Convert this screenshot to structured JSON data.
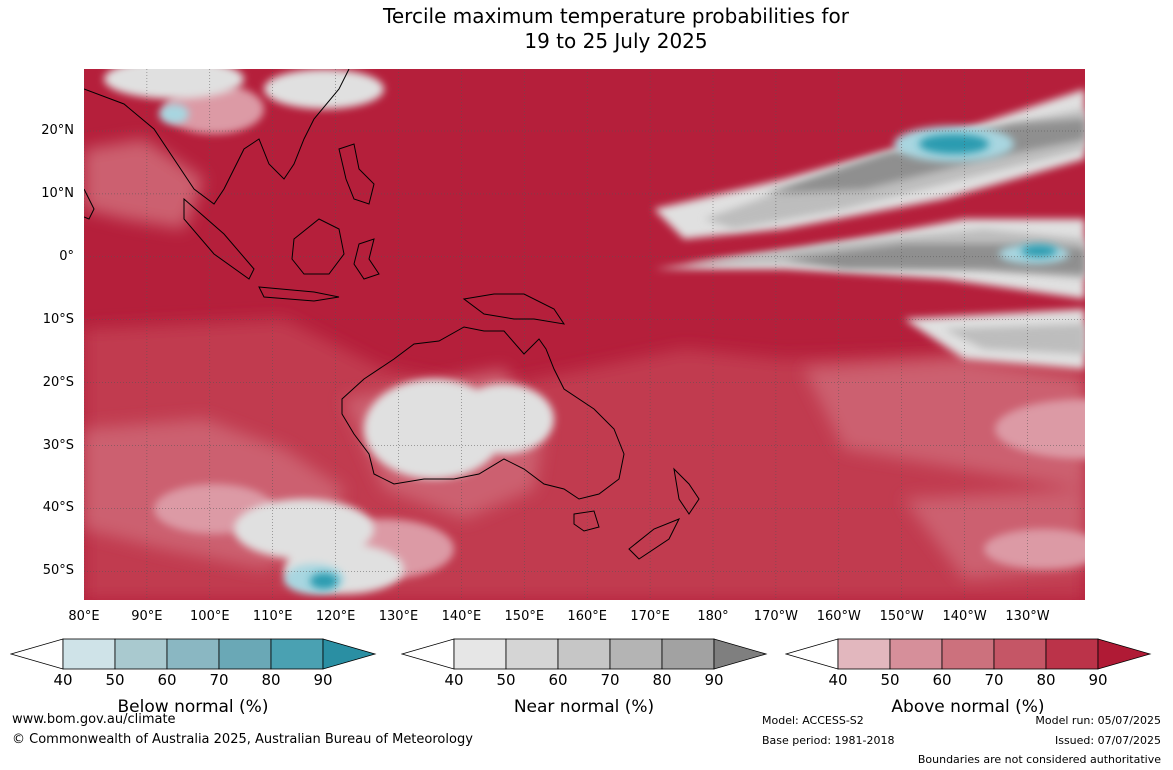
{
  "title_line1": "Tercile maximum temperature probabilities for",
  "title_line2": "19 to 25 July 2025",
  "lat_labels": [
    "20°N",
    "10°N",
    "0°",
    "10°S",
    "20°S",
    "30°S",
    "40°S",
    "50°S"
  ],
  "lon_labels": [
    "80°E",
    "90°E",
    "100°E",
    "110°E",
    "120°E",
    "130°E",
    "140°E",
    "150°E",
    "160°E",
    "170°E",
    "180°",
    "170°W",
    "160°W",
    "150°W",
    "140°W",
    "130°W"
  ],
  "colorbars": [
    {
      "title": "Below normal (%)",
      "ticks": [
        "40",
        "50",
        "60",
        "70",
        "80",
        "90"
      ],
      "colors": [
        "#cfe3e8",
        "#a9c9cf",
        "#8ab7c2",
        "#6aa8b6",
        "#4aa1b2"
      ],
      "extend_color": "#2a8fa3"
    },
    {
      "title": "Near normal (%)",
      "ticks": [
        "40",
        "50",
        "60",
        "70",
        "80",
        "90"
      ],
      "colors": [
        "#e6e6e6",
        "#d5d5d5",
        "#c6c6c6",
        "#b4b4b4",
        "#a2a2a2"
      ],
      "extend_color": "#7f7f7f"
    },
    {
      "title": "Above normal (%)",
      "ticks": [
        "40",
        "50",
        "60",
        "70",
        "80",
        "90"
      ],
      "colors": [
        "#e2b7be",
        "#d68f9a",
        "#cc717d",
        "#c55666",
        "#bb3349"
      ],
      "extend_color": "#b01a35"
    }
  ],
  "map_colors": {
    "above_strong": "#b51f3b",
    "above_high": "#c13a50",
    "above_mid": "#cc6070",
    "above_low": "#dc9aa5",
    "near_light": "#e0e0e0",
    "near_mid": "#bdbdbd",
    "near_dark": "#8f8f8f",
    "below_light": "#a8d6e0",
    "below_strong": "#2a9bb0",
    "land_line": "#000000"
  },
  "footer": {
    "url": "www.bom.gov.au/climate",
    "copyright": "© Commonwealth of Australia 2025, Australian Bureau of Meteorology",
    "model": "Model: ACCESS-S2",
    "base_period": "Base period: 1981-2018",
    "model_run": "Model run: 05/07/2025",
    "issued": "Issued: 07/07/2025",
    "disclaimer": "Boundaries are not considered authoritative"
  }
}
